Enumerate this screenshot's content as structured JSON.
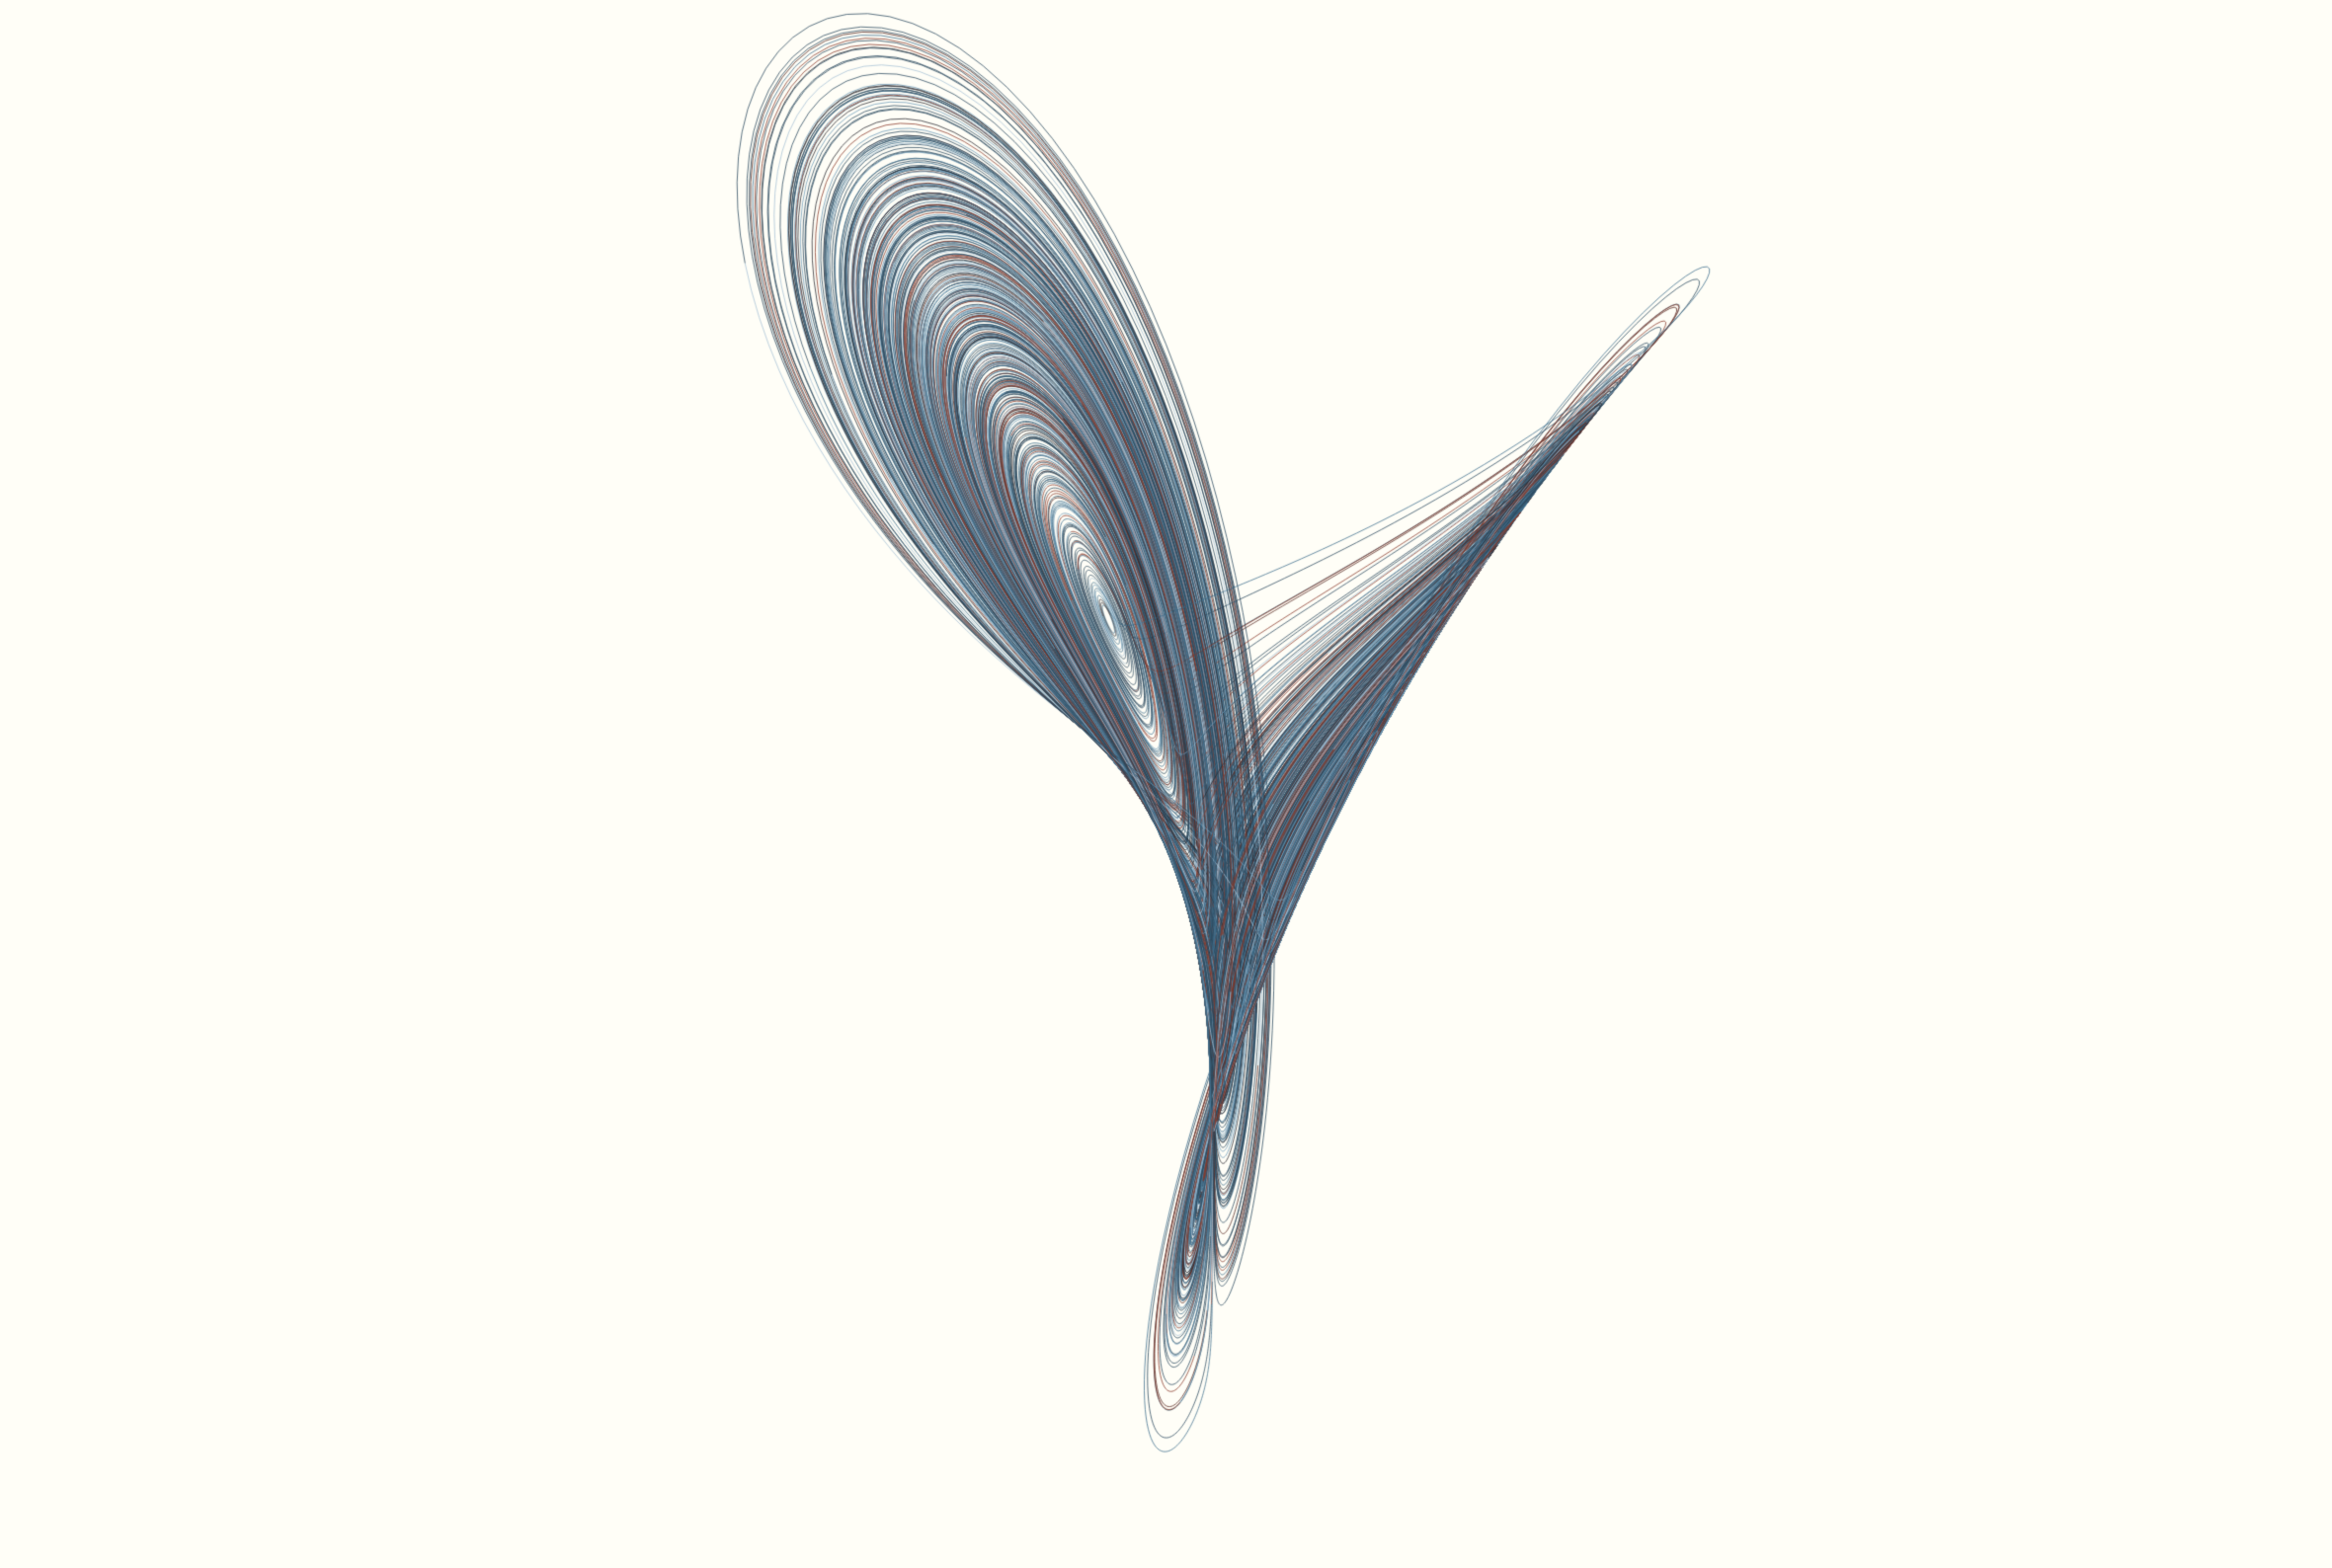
{
  "artwork": {
    "subject": "strange-attractor-trajectories",
    "background_color": "#fffef7",
    "palette": [
      "#2c4a5e",
      "#3f6e8c",
      "#6f9bb8",
      "#a8c3d6",
      "#8a3a2a",
      "#5a2a22",
      "#2a2a30"
    ]
  }
}
